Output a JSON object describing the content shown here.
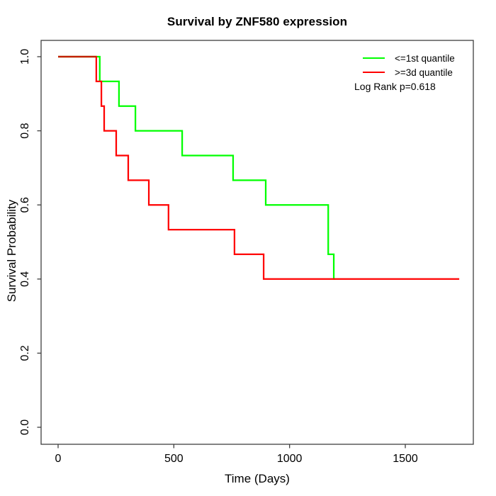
{
  "chart_data": {
    "type": "line",
    "subtype": "kaplan-meier-step-curves",
    "title": "Survival by ZNF580 expression",
    "xlabel": "Time (Days)",
    "ylabel": "Survival Probability",
    "xlim": [
      0,
      1794
    ],
    "ylim": [
      0.0,
      1.0
    ],
    "x_ticks": [
      0,
      500,
      1000,
      1500
    ],
    "y_tick_labels": [
      "0.0",
      "0.2",
      "0.4",
      "0.6",
      "0.8",
      "1.0"
    ],
    "grid": false,
    "legend_position": "top-right-inside",
    "annotation": "Log Rank p=0.618",
    "series": [
      {
        "name": "<=1st quantile",
        "color": "#00ff00",
        "start": [
          0,
          1.0
        ],
        "steps": [
          [
            180,
            0.9333
          ],
          [
            263,
            0.8667
          ],
          [
            334,
            0.8
          ],
          [
            536,
            0.7333
          ],
          [
            756,
            0.6667
          ],
          [
            897,
            0.6
          ],
          [
            1167,
            0.4667
          ],
          [
            1191,
            0.4
          ]
        ],
        "end_day": 1196
      },
      {
        "name": ">=3d quantile",
        "color": "#ff0000",
        "start": [
          0,
          1.0
        ],
        "steps": [
          [
            165,
            0.9333
          ],
          [
            187,
            0.8667
          ],
          [
            199,
            0.8
          ],
          [
            251,
            0.7333
          ],
          [
            303,
            0.6667
          ],
          [
            392,
            0.6
          ],
          [
            477,
            0.5333
          ],
          [
            762,
            0.4667
          ],
          [
            888,
            0.4
          ]
        ],
        "end_day": 1733
      }
    ],
    "overlap_segment_color": "#c22000",
    "axis_color": "#3f3f3f",
    "text_color": "#000000"
  }
}
